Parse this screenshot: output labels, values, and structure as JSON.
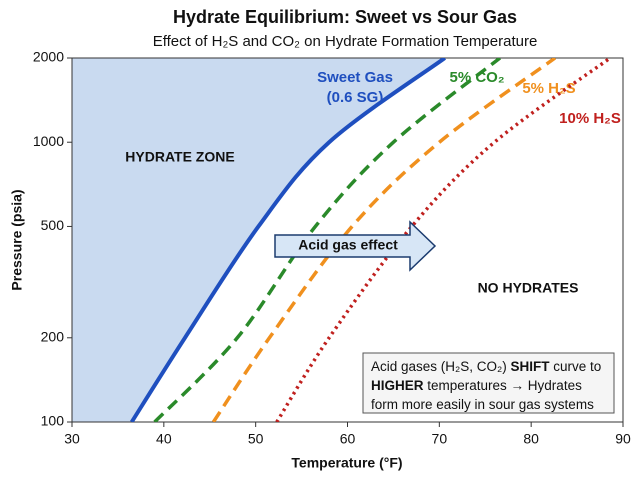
{
  "chart_data": {
    "type": "line",
    "title": "Hydrate Equilibrium: Sweet vs Sour Gas",
    "subtitle": "Effect of H₂S and CO₂ on Hydrate Formation Temperature",
    "x_label": "Temperature (°F)",
    "y_label": "Pressure (psia)",
    "xlim": [
      30,
      90
    ],
    "xticks": [
      30,
      40,
      50,
      60,
      70,
      80,
      90
    ],
    "ylim": [
      100,
      2000
    ],
    "yticks": [
      100,
      200,
      500,
      1000,
      2000
    ],
    "y_scale": "log",
    "series": [
      {
        "name": "Sweet Gas",
        "note": "(0.6 SG)",
        "color": "#1f4fbf",
        "style": "solid",
        "x": [
          36.5,
          42.3,
          50.3,
          58,
          70.6
        ],
        "values": [
          100,
          200,
          500,
          1000,
          2000
        ]
      },
      {
        "name": "5% CO₂",
        "color": "#2a8a2a",
        "style": "dashed",
        "x": [
          39,
          48,
          56.5,
          65,
          76.6
        ],
        "values": [
          100,
          200,
          500,
          1000,
          2000
        ]
      },
      {
        "name": "5% H₂S",
        "color": "#f0901e",
        "style": "dashed",
        "x": [
          45.4,
          51.5,
          60.5,
          70,
          82.6
        ],
        "values": [
          100,
          200,
          500,
          1000,
          2000
        ]
      },
      {
        "name": "10% H₂S",
        "color": "#c0201e",
        "style": "dotted",
        "x": [
          52.3,
          58,
          67,
          76,
          88.6
        ],
        "values": [
          100,
          200,
          500,
          1000,
          2000
        ]
      }
    ],
    "zone_labels": [
      "HYDRATE ZONE",
      "NO HYDRATES"
    ],
    "arrow_label": "Acid gas effect",
    "note": [
      [
        "Acid gases (H₂S, CO₂) ",
        "SHIFT",
        " curve to"
      ],
      [
        "HIGHER",
        " temperatures → Hydrates"
      ],
      [
        "form more easily in sour gas systems"
      ]
    ]
  }
}
